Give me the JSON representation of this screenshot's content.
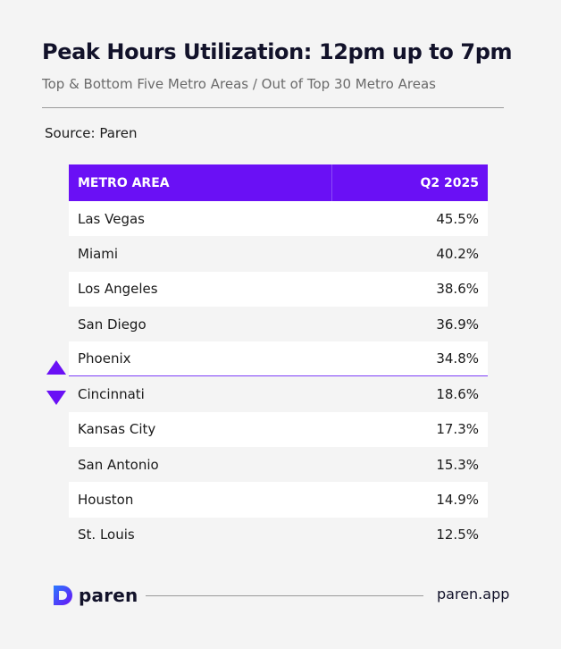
{
  "header": {
    "title": "Peak Hours Utilization: 12pm up to 7pm",
    "subtitle": "Top & Bottom Five Metro Areas / Out of Top 30 Metro Areas",
    "source": "Source: Paren"
  },
  "chart_data": {
    "type": "table",
    "columns": [
      "METRO AREA",
      "Q2 2025"
    ],
    "rows": [
      {
        "metro": "Las Vegas",
        "value": "45.5%"
      },
      {
        "metro": "Miami",
        "value": "40.2%"
      },
      {
        "metro": "Los Angeles",
        "value": "38.6%"
      },
      {
        "metro": "San Diego",
        "value": "36.9%"
      },
      {
        "metro": "Phoenix",
        "value": "34.8%"
      },
      {
        "metro": "Cincinnati",
        "value": "18.6%"
      },
      {
        "metro": "Kansas City",
        "value": "17.3%"
      },
      {
        "metro": "San Antonio",
        "value": "15.3%"
      },
      {
        "metro": "Houston",
        "value": "14.9%"
      },
      {
        "metro": "St. Louis",
        "value": "12.5%"
      }
    ],
    "top_group_size": 5
  },
  "colors": {
    "accent": "#6a10f5",
    "background": "#f4f4f4",
    "row_alt": "#ffffff"
  },
  "icons": {
    "top_marker": "triangle-up-icon",
    "bottom_marker": "triangle-down-icon",
    "logo": "paren-logo-icon"
  },
  "footer": {
    "brand": "paren",
    "site": "paren.app"
  }
}
